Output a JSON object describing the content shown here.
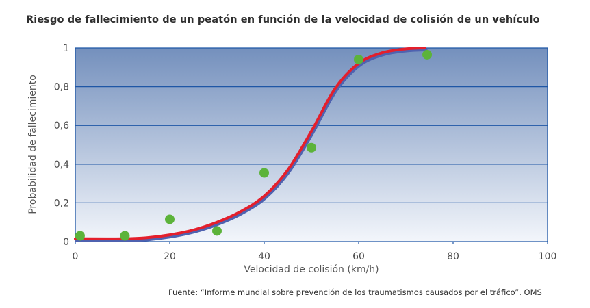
{
  "title": "Riesgo de fallecimiento de un peatón en función de la velocidad de colisión de un vehículo",
  "source": "Fuente: “Informe mundial sobre prevención de los traumatismos causados por el tráfico”. OMS",
  "chart_data": {
    "type": "scatter",
    "title": "Riesgo de fallecimiento de un peatón en función de la velocidad de colisión de un vehículo",
    "xlabel": "Velocidad de colisión (km/h)",
    "ylabel": "Probabilidad de fallecimiento",
    "xlim": [
      0,
      100
    ],
    "ylim": [
      0,
      1
    ],
    "x_ticks": [
      "0",
      "20",
      "40",
      "60",
      "80",
      "100"
    ],
    "y_ticks": [
      "0",
      "0,2",
      "0,4",
      "0,6",
      "0,8",
      "1"
    ],
    "grid": "horizontal",
    "points": [
      {
        "x": 1,
        "y": 0.03
      },
      {
        "x": 10.5,
        "y": 0.03
      },
      {
        "x": 20,
        "y": 0.115
      },
      {
        "x": 30,
        "y": 0.055
      },
      {
        "x": 40,
        "y": 0.355
      },
      {
        "x": 50,
        "y": 0.485
      },
      {
        "x": 60,
        "y": 0.94
      },
      {
        "x": 74.5,
        "y": 0.965
      }
    ],
    "fit_curve": [
      {
        "x": 0,
        "y": 0.015
      },
      {
        "x": 10,
        "y": 0.015
      },
      {
        "x": 15,
        "y": 0.02
      },
      {
        "x": 20,
        "y": 0.035
      },
      {
        "x": 25,
        "y": 0.06
      },
      {
        "x": 30,
        "y": 0.1
      },
      {
        "x": 35,
        "y": 0.155
      },
      {
        "x": 40,
        "y": 0.235
      },
      {
        "x": 45,
        "y": 0.37
      },
      {
        "x": 50,
        "y": 0.57
      },
      {
        "x": 55,
        "y": 0.79
      },
      {
        "x": 60,
        "y": 0.92
      },
      {
        "x": 65,
        "y": 0.975
      },
      {
        "x": 70,
        "y": 0.995
      },
      {
        "x": 74,
        "y": 1.0
      }
    ],
    "colors": {
      "points": "#5cb33a",
      "curve": "#e41f2c",
      "curve_shadow": "#4f62b0",
      "grid": "#1f57a6",
      "plot_top": "#7490bd",
      "plot_bottom": "#f3f6fb"
    }
  }
}
